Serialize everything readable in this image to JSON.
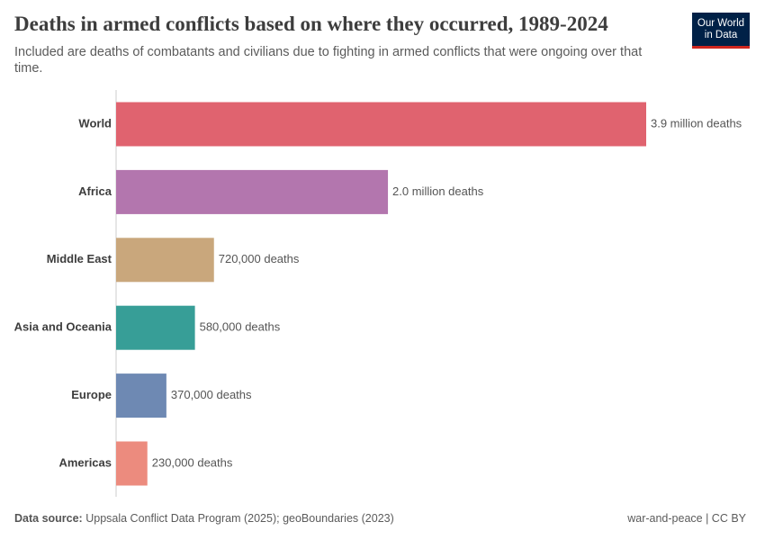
{
  "chart_data": {
    "type": "bar",
    "orientation": "horizontal",
    "title": "Deaths in armed conflicts based on where they occurred, 1989-2024",
    "subtitle": "Included are deaths of combatants and civilians due to fighting in armed conflicts that were ongoing over that time.",
    "logo": "Our World in Data",
    "source_label": "Data source:",
    "source": "Uppsala Conflict Data Program (2025); geoBoundaries (2023)",
    "license": "war-and-peace | CC BY",
    "categories": [
      "World",
      "Africa",
      "Middle East",
      "Asia and Oceania",
      "Europe",
      "Americas"
    ],
    "values": [
      3900000,
      2000000,
      720000,
      580000,
      370000,
      230000
    ],
    "value_labels": [
      "3.9 million deaths",
      "2.0 million deaths",
      "720,000 deaths",
      "580,000 deaths",
      "370,000 deaths",
      "230,000 deaths"
    ],
    "colors": [
      "#e0636f",
      "#b376ae",
      "#c9a77c",
      "#379e97",
      "#6e89b3",
      "#ec8b7e"
    ]
  }
}
